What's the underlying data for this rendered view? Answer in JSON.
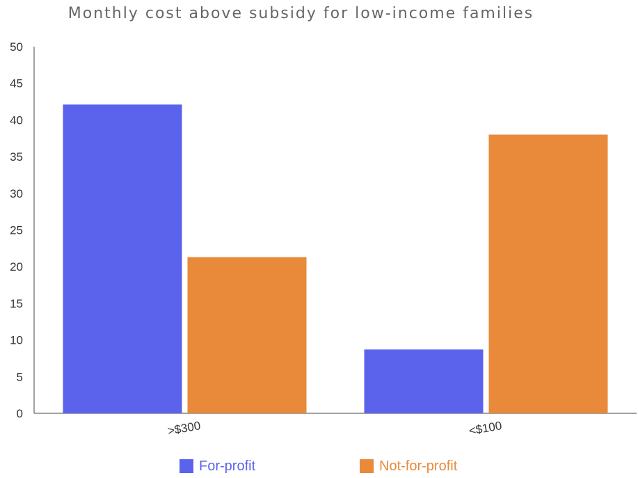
{
  "chart_data": {
    "type": "bar",
    "title": "Monthly cost above subsidy for low-income families",
    "categories": [
      ">$300",
      "<$100"
    ],
    "series": [
      {
        "name": "For-profit",
        "color": "#5b63ec",
        "values": [
          42.1,
          8.7
        ]
      },
      {
        "name": "Not-for-profit",
        "color": "#e88a3a",
        "values": [
          21.3,
          38.0
        ]
      }
    ],
    "ylim": [
      0,
      50
    ],
    "yticks": [
      0,
      5,
      10,
      15,
      20,
      25,
      30,
      35,
      40,
      45,
      50
    ],
    "xlabel": "",
    "ylabel": "",
    "grid": false,
    "legend_position": "bottom"
  }
}
